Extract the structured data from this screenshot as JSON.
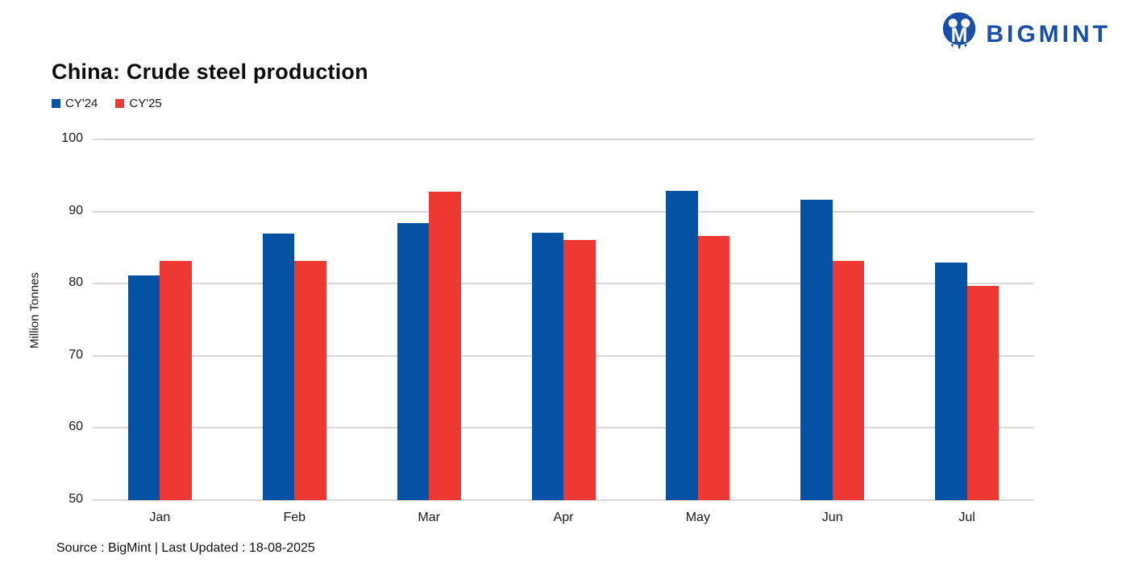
{
  "brand": {
    "name": "BIGMINT",
    "color": "#1A4FA8"
  },
  "header": {
    "title": "China: Crude steel production"
  },
  "footer": {
    "source_note": "Source : BigMint | Last Updated : 18-08-2025"
  },
  "chart_data": {
    "type": "bar",
    "title": "China: Crude steel production",
    "categories": [
      "Jan",
      "Feb",
      "Mar",
      "Apr",
      "May",
      "Jun",
      "Jul"
    ],
    "series": [
      {
        "name": "CY'24",
        "color": "#0552A5",
        "values": [
          81.1,
          86.9,
          88.4,
          87.1,
          92.9,
          91.6,
          82.9
        ]
      },
      {
        "name": "CY'25",
        "color": "#EE3833",
        "values": [
          83.2,
          83.1,
          92.8,
          86.0,
          86.6,
          83.2,
          79.7
        ]
      }
    ],
    "xlabel": "",
    "ylabel": "Million Tonnes",
    "ylim": [
      50,
      100
    ],
    "yticks": [
      50,
      60,
      70,
      80,
      90,
      100
    ],
    "grid": true,
    "gridline_color": "#d9d9d9",
    "legend_position": "top-left"
  }
}
